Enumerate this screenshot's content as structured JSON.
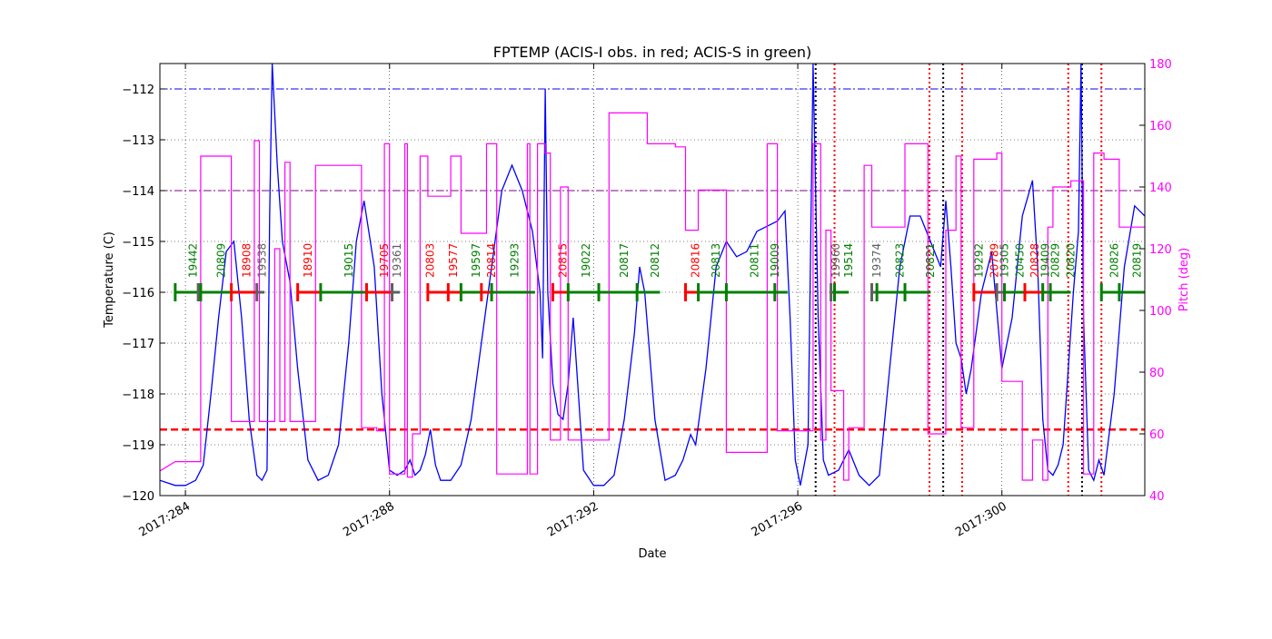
{
  "chart_data": {
    "type": "line",
    "title": "FPTEMP (ACIS-I obs. in red; ACIS-S in green)",
    "xlabel": "Date",
    "ylabel": "Temperature (C)",
    "y2label": "Pitch (deg)",
    "xlim": [
      283.5,
      302.8
    ],
    "ylim": [
      -120,
      -111.5
    ],
    "y2lim": [
      40,
      180
    ],
    "x_ticks": [
      {
        "value": 284,
        "label": "2017:284"
      },
      {
        "value": 288,
        "label": "2017:288"
      },
      {
        "value": 292,
        "label": "2017:292"
      },
      {
        "value": 296,
        "label": "2017:296"
      },
      {
        "value": 300,
        "label": "2017:300"
      }
    ],
    "y_ticks": [
      -120,
      -119,
      -118,
      -117,
      -116,
      -115,
      -114,
      -113,
      -112
    ],
    "y_tick_labels": [
      "−120",
      "−119",
      "−118",
      "−117",
      "−116",
      "−115",
      "−114",
      "−113",
      "−112"
    ],
    "y2_ticks": [
      40,
      60,
      80,
      100,
      120,
      140,
      160,
      180
    ],
    "grid": true,
    "colors": {
      "temperature": "#0000ff",
      "pitch": "#ff00ff",
      "acis_i": "#ff0000",
      "acis_s": "#008000",
      "other_obs": "#606060",
      "limit_top": "#0000ff",
      "limit_mid": "#800080",
      "planning_limit": "#ff0000"
    },
    "horizontal_lines": [
      {
        "value": -112.0,
        "style": "dashdot",
        "color": "#0000ff"
      },
      {
        "value": -114.0,
        "style": "dashdot",
        "color": "#800080"
      },
      {
        "value": -118.7,
        "style": "dashed",
        "color": "#ff0000"
      }
    ],
    "vertical_lines": [
      {
        "x": 296.35,
        "color": "#000000"
      },
      {
        "x": 296.72,
        "color": "#ff0000"
      },
      {
        "x": 298.58,
        "color": "#ff0000"
      },
      {
        "x": 298.85,
        "color": "#000000"
      },
      {
        "x": 299.22,
        "color": "#ff0000"
      },
      {
        "x": 301.3,
        "color": "#ff0000"
      },
      {
        "x": 301.57,
        "color": "#000000"
      },
      {
        "x": 301.95,
        "color": "#ff0000"
      }
    ],
    "observations": [
      {
        "obsid": "19442",
        "x": 284.15,
        "type": "S"
      },
      {
        "obsid": "20809",
        "x": 284.7,
        "type": "S"
      },
      {
        "obsid": "18908",
        "x": 285.2,
        "type": "I"
      },
      {
        "obsid": "19538",
        "x": 285.5,
        "type": "O"
      },
      {
        "obsid": "18910",
        "x": 286.4,
        "type": "I"
      },
      {
        "obsid": "19015",
        "x": 287.2,
        "type": "S"
      },
      {
        "obsid": "19705",
        "x": 287.9,
        "type": "I"
      },
      {
        "obsid": "19361",
        "x": 288.15,
        "type": "O"
      },
      {
        "obsid": "20803",
        "x": 288.8,
        "type": "I"
      },
      {
        "obsid": "19577",
        "x": 289.25,
        "type": "I"
      },
      {
        "obsid": "19597",
        "x": 289.7,
        "type": "S"
      },
      {
        "obsid": "20814",
        "x": 290.0,
        "type": "I"
      },
      {
        "obsid": "19293",
        "x": 290.45,
        "type": "S"
      },
      {
        "obsid": "20815",
        "x": 291.4,
        "type": "I"
      },
      {
        "obsid": "19022",
        "x": 291.85,
        "type": "S"
      },
      {
        "obsid": "20817",
        "x": 292.6,
        "type": "S"
      },
      {
        "obsid": "20812",
        "x": 293.2,
        "type": "S"
      },
      {
        "obsid": "20816",
        "x": 294.0,
        "type": "I"
      },
      {
        "obsid": "20813",
        "x": 294.4,
        "type": "S"
      },
      {
        "obsid": "20811",
        "x": 295.15,
        "type": "S"
      },
      {
        "obsid": "19009",
        "x": 295.55,
        "type": "S"
      },
      {
        "obsid": "19960",
        "x": 296.75,
        "type": "O"
      },
      {
        "obsid": "19514",
        "x": 297.0,
        "type": "S"
      },
      {
        "obsid": "19374",
        "x": 297.55,
        "type": "O"
      },
      {
        "obsid": "20823",
        "x": 298.0,
        "type": "S"
      },
      {
        "obsid": "20821",
        "x": 298.6,
        "type": "S"
      },
      {
        "obsid": "19292",
        "x": 299.55,
        "type": "S"
      },
      {
        "obsid": "20789",
        "x": 299.85,
        "type": "I"
      },
      {
        "obsid": "19305",
        "x": 300.05,
        "type": "S"
      },
      {
        "obsid": "20450",
        "x": 300.35,
        "type": "S"
      },
      {
        "obsid": "20828",
        "x": 300.65,
        "type": "I"
      },
      {
        "obsid": "19409",
        "x": 300.85,
        "type": "S"
      },
      {
        "obsid": "20829",
        "x": 301.05,
        "type": "S"
      },
      {
        "obsid": "20820",
        "x": 301.35,
        "type": "S"
      },
      {
        "obsid": "20826",
        "x": 302.2,
        "type": "S"
      },
      {
        "obsid": "20819",
        "x": 302.65,
        "type": "S"
      }
    ],
    "obs_segments": [
      {
        "x1": 283.8,
        "x2": 284.25,
        "type": "S"
      },
      {
        "x1": 284.25,
        "x2": 284.3,
        "type": "O"
      },
      {
        "x1": 284.3,
        "x2": 284.9,
        "type": "S"
      },
      {
        "x1": 284.9,
        "x2": 285.4,
        "type": "I"
      },
      {
        "x1": 285.4,
        "x2": 285.55,
        "type": "O"
      },
      {
        "x1": 286.2,
        "x2": 286.65,
        "type": "I"
      },
      {
        "x1": 286.65,
        "x2": 287.55,
        "type": "S"
      },
      {
        "x1": 287.55,
        "x2": 288.05,
        "type": "I"
      },
      {
        "x1": 288.05,
        "x2": 288.2,
        "type": "O"
      },
      {
        "x1": 288.75,
        "x2": 289.15,
        "type": "I"
      },
      {
        "x1": 289.15,
        "x2": 289.4,
        "type": "I"
      },
      {
        "x1": 289.4,
        "x2": 289.8,
        "type": "S"
      },
      {
        "x1": 289.8,
        "x2": 290.0,
        "type": "I"
      },
      {
        "x1": 290.0,
        "x2": 290.85,
        "type": "S"
      },
      {
        "x1": 291.2,
        "x2": 291.5,
        "type": "I"
      },
      {
        "x1": 291.5,
        "x2": 292.1,
        "type": "S"
      },
      {
        "x1": 292.1,
        "x2": 292.85,
        "type": "S"
      },
      {
        "x1": 292.85,
        "x2": 293.3,
        "type": "S"
      },
      {
        "x1": 293.8,
        "x2": 294.05,
        "type": "I"
      },
      {
        "x1": 294.05,
        "x2": 294.6,
        "type": "S"
      },
      {
        "x1": 294.6,
        "x2": 295.55,
        "type": "S"
      },
      {
        "x1": 295.55,
        "x2": 295.8,
        "type": "S"
      },
      {
        "x1": 296.65,
        "x2": 296.72,
        "type": "O"
      },
      {
        "x1": 296.72,
        "x2": 297.0,
        "type": "S"
      },
      {
        "x1": 297.45,
        "x2": 297.55,
        "type": "O"
      },
      {
        "x1": 297.55,
        "x2": 298.1,
        "type": "S"
      },
      {
        "x1": 298.1,
        "x2": 298.6,
        "type": "S"
      },
      {
        "x1": 299.45,
        "x2": 299.9,
        "type": "I"
      },
      {
        "x1": 299.9,
        "x2": 300.05,
        "type": "O"
      },
      {
        "x1": 300.05,
        "x2": 300.45,
        "type": "S"
      },
      {
        "x1": 300.45,
        "x2": 300.8,
        "type": "I"
      },
      {
        "x1": 300.8,
        "x2": 300.95,
        "type": "S"
      },
      {
        "x1": 300.95,
        "x2": 301.35,
        "type": "S"
      },
      {
        "x1": 301.95,
        "x2": 302.3,
        "type": "S"
      },
      {
        "x1": 302.3,
        "x2": 302.8,
        "type": "S"
      }
    ],
    "series": [
      {
        "name": "FPTEMP",
        "axis": "left",
        "x": [
          283.5,
          283.8,
          284.0,
          284.2,
          284.35,
          284.5,
          284.65,
          284.8,
          284.95,
          285.1,
          285.25,
          285.4,
          285.5,
          285.6,
          285.65,
          285.7,
          285.8,
          285.9,
          286.05,
          286.2,
          286.4,
          286.6,
          286.8,
          287.0,
          287.2,
          287.35,
          287.5,
          287.7,
          287.85,
          288.0,
          288.15,
          288.3,
          288.4,
          288.5,
          288.6,
          288.7,
          288.8,
          288.9,
          289.0,
          289.2,
          289.4,
          289.6,
          289.8,
          290.0,
          290.2,
          290.4,
          290.6,
          290.8,
          290.95,
          291.0,
          291.05,
          291.1,
          291.2,
          291.3,
          291.4,
          291.5,
          291.6,
          291.7,
          291.8,
          292.0,
          292.2,
          292.4,
          292.6,
          292.8,
          292.9,
          293.0,
          293.2,
          293.4,
          293.6,
          293.75,
          293.9,
          294.0,
          294.2,
          294.4,
          294.6,
          294.8,
          295.0,
          295.2,
          295.4,
          295.6,
          295.75,
          295.85,
          295.95,
          296.05,
          296.2,
          296.3,
          296.4,
          296.5,
          296.6,
          296.8,
          297.0,
          297.2,
          297.4,
          297.6,
          297.8,
          298.0,
          298.2,
          298.4,
          298.6,
          298.8,
          298.9,
          299.0,
          299.1,
          299.2,
          299.3,
          299.4,
          299.6,
          299.8,
          300.0,
          300.2,
          300.4,
          300.6,
          300.7,
          300.8,
          300.9,
          301.0,
          301.1,
          301.2,
          301.3,
          301.4,
          301.5,
          301.55,
          301.6,
          301.7,
          301.8,
          301.9,
          302.0,
          302.2,
          302.4,
          302.6,
          302.8
        ],
        "values": [
          -119.7,
          -119.8,
          -119.8,
          -119.7,
          -119.4,
          -118.0,
          -116.5,
          -115.2,
          -115.0,
          -116.5,
          -118.5,
          -119.6,
          -119.7,
          -119.5,
          -114.5,
          -111.5,
          -113.5,
          -115.0,
          -115.8,
          -117.5,
          -119.3,
          -119.7,
          -119.6,
          -119.0,
          -117.0,
          -115.0,
          -114.2,
          -115.5,
          -118.0,
          -119.5,
          -119.6,
          -119.5,
          -119.3,
          -119.6,
          -119.5,
          -119.2,
          -118.7,
          -119.4,
          -119.7,
          -119.7,
          -119.4,
          -118.5,
          -117.0,
          -115.5,
          -114.0,
          -113.5,
          -114.0,
          -114.8,
          -116.0,
          -117.3,
          -112.0,
          -116.0,
          -117.8,
          -118.4,
          -118.5,
          -117.8,
          -116.5,
          -118.0,
          -119.5,
          -119.8,
          -119.8,
          -119.6,
          -118.5,
          -116.8,
          -115.5,
          -116.0,
          -118.5,
          -119.7,
          -119.6,
          -119.3,
          -118.8,
          -119.0,
          -117.5,
          -115.5,
          -115.0,
          -115.3,
          -115.2,
          -114.8,
          -114.7,
          -114.6,
          -114.4,
          -116.5,
          -119.3,
          -119.8,
          -119.0,
          -111.5,
          -116.5,
          -119.3,
          -119.6,
          -119.5,
          -119.1,
          -119.6,
          -119.8,
          -119.6,
          -117.5,
          -115.5,
          -114.5,
          -114.5,
          -115.0,
          -115.5,
          -114.2,
          -115.5,
          -117.0,
          -117.3,
          -118.0,
          -117.5,
          -116.0,
          -115.2,
          -117.5,
          -116.5,
          -114.5,
          -113.8,
          -115.5,
          -118.5,
          -119.5,
          -119.6,
          -119.4,
          -119.0,
          -117.5,
          -116.0,
          -114.8,
          -111.5,
          -116.5,
          -119.5,
          -119.7,
          -119.3,
          -119.6,
          -118.0,
          -115.5,
          -114.3,
          -114.5
        ]
      },
      {
        "name": "Pitch",
        "axis": "right",
        "x": [
          283.5,
          283.8,
          283.8,
          284.3,
          284.3,
          284.9,
          284.9,
          285.35,
          285.35,
          285.45,
          285.45,
          285.75,
          285.75,
          285.85,
          285.85,
          285.95,
          285.95,
          286.05,
          286.05,
          286.55,
          286.55,
          287.45,
          287.45,
          287.75,
          287.75,
          287.9,
          287.9,
          288.0,
          288.0,
          288.3,
          288.3,
          288.35,
          288.35,
          288.45,
          288.45,
          288.6,
          288.6,
          288.75,
          288.75,
          289.2,
          289.2,
          289.4,
          289.4,
          289.9,
          289.9,
          290.1,
          290.1,
          290.7,
          290.7,
          290.75,
          290.75,
          290.9,
          290.9,
          291.05,
          291.05,
          291.15,
          291.15,
          291.3,
          291.3,
          291.35,
          291.35,
          291.5,
          291.5,
          292.3,
          292.3,
          293.05,
          293.05,
          293.45,
          293.45,
          293.6,
          293.6,
          293.8,
          293.8,
          293.9,
          293.9,
          294.05,
          294.05,
          294.6,
          294.6,
          295.4,
          295.4,
          295.6,
          295.6,
          296.3,
          296.3,
          296.45,
          296.45,
          296.55,
          296.55,
          296.65,
          296.65,
          296.9,
          296.9,
          297.0,
          297.0,
          297.3,
          297.3,
          297.45,
          297.45,
          298.1,
          298.1,
          298.55,
          298.55,
          298.7,
          298.7,
          298.9,
          298.9,
          299.1,
          299.1,
          299.2,
          299.2,
          299.45,
          299.45,
          299.9,
          299.9,
          300.0,
          300.0,
          300.4,
          300.4,
          300.6,
          300.6,
          300.8,
          300.8,
          300.9,
          300.9,
          301.0,
          301.0,
          301.35,
          301.35,
          301.6,
          301.6,
          301.8,
          301.8,
          302.0,
          302.0,
          302.3,
          302.3,
          302.8
        ],
        "values": [
          48,
          51,
          51,
          51,
          150,
          150,
          64,
          64,
          155,
          155,
          64,
          64,
          120,
          120,
          64,
          64,
          148,
          148,
          64,
          64,
          147,
          147,
          62,
          62,
          61,
          61,
          154,
          154,
          47,
          47,
          154,
          154,
          46,
          46,
          60,
          60,
          150,
          150,
          137,
          137,
          150,
          150,
          125,
          125,
          154,
          154,
          47,
          47,
          154,
          154,
          47,
          47,
          154,
          154,
          151,
          151,
          58,
          58,
          58,
          58,
          140,
          140,
          58,
          58,
          164,
          164,
          154,
          154,
          154,
          154,
          153,
          153,
          126,
          126,
          126,
          126,
          139,
          139,
          54,
          54,
          154,
          154,
          61,
          61,
          154,
          154,
          58,
          58,
          126,
          126,
          74,
          74,
          45,
          45,
          62,
          62,
          147,
          147,
          127,
          127,
          154,
          154,
          60,
          60,
          60,
          60,
          126,
          126,
          150,
          150,
          62,
          62,
          149,
          149,
          151,
          151,
          77,
          77,
          45,
          45,
          58,
          58,
          45,
          45,
          127,
          127,
          140,
          140,
          142,
          142,
          47,
          47,
          151,
          151,
          149,
          149,
          127,
          127
        ]
      }
    ]
  }
}
